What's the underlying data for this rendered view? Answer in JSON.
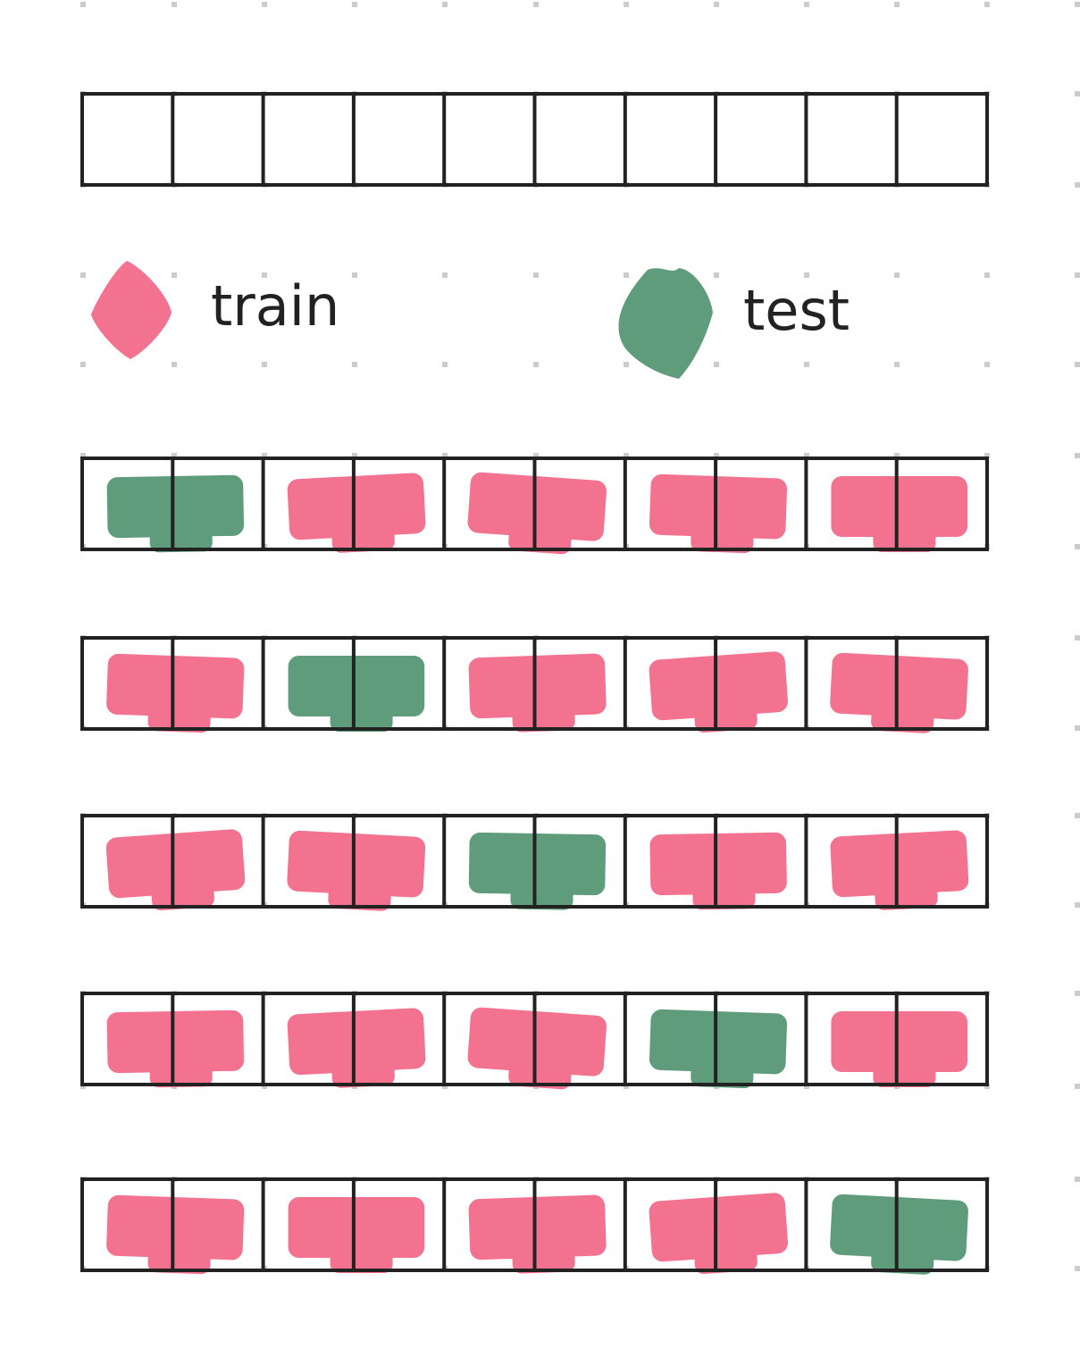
{
  "legend": [
    {
      "label": "train",
      "color": "#f2728f"
    },
    {
      "label": "test",
      "color": "#5f9c7b"
    }
  ]
}
